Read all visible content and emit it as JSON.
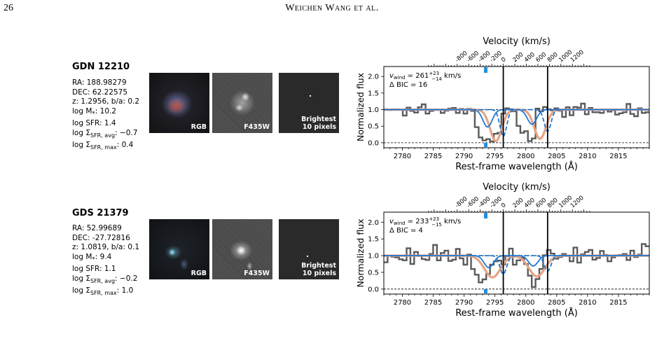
{
  "header": {
    "page_number": "26",
    "running_title": "Weichen Wang et al."
  },
  "panels": [
    {
      "name": "GDN 12210",
      "properties": {
        "ra": "RA: 188.98279",
        "dec": "DEC: 62.22575",
        "z_ba": "z: 1.2956, b/a: 0.2",
        "logm_prefix": "log M",
        "logm_value": ": 10.2",
        "logsfr": "log SFR: 1.4",
        "sigma_avg_prefix": "log Σ",
        "sigma_avg_sub": "SFR, avg",
        "sigma_avg_value": ": −0.7",
        "sigma_max_prefix": "log Σ",
        "sigma_max_sub": "SFR, max",
        "sigma_max_value": ": 0.4"
      },
      "images": {
        "rgb_label": "RGB",
        "f435w_label": "F435W",
        "bright_label_1": "Brightest",
        "bright_label_2": "10 pixels"
      },
      "spectrum": {
        "vwind_text": "= 261",
        "vwind_sup": "+23",
        "vwind_sub": "−14",
        "vwind_unit": "km/s",
        "dbic_text": "Δ BIC = 16"
      }
    },
    {
      "name": "GDS 21379",
      "properties": {
        "ra": "RA: 52.99689",
        "dec": "DEC: -27.72816",
        "z_ba": "z: 1.0819, b/a: 0.1",
        "logm_prefix": "log M",
        "logm_value": ": 9.4",
        "logsfr": "log SFR: 1.1",
        "sigma_avg_prefix": "log Σ",
        "sigma_avg_sub": "SFR, avg",
        "sigma_avg_value": ": −0.2",
        "sigma_max_prefix": "log Σ",
        "sigma_max_sub": "SFR, max",
        "sigma_max_value": ": 1.0"
      },
      "images": {
        "rgb_label": "RGB",
        "f435w_label": "F435W",
        "bright_label_1": "Brightest",
        "bright_label_2": "10 pixels"
      },
      "spectrum": {
        "vwind_text": "= 233",
        "vwind_sup": "+23",
        "vwind_sub": "−15",
        "vwind_unit": "km/s",
        "dbic_text": "Δ BIC = 4"
      }
    }
  ],
  "chart_data": [
    {
      "type": "line",
      "xlabel": "Rest-frame wavelength (Å)",
      "ylabel": "Normalized flux",
      "top_xlabel": "Velocity (km/s)",
      "xlim": [
        2777,
        2820
      ],
      "ylim": [
        -0.15,
        2.3
      ],
      "xticks": [
        2780,
        2785,
        2790,
        2795,
        2800,
        2805,
        2810,
        2815
      ],
      "yticks": [
        0.0,
        0.5,
        1.0,
        1.5,
        2.0
      ],
      "ytick_labels": [
        "0.0",
        "0.5",
        "1.0",
        "1.5",
        "2.0"
      ],
      "velocity_ticks": [
        "-800",
        "-600",
        "-400",
        "-200",
        "0",
        "200",
        "400",
        "600",
        "800",
        "1000",
        "1200"
      ],
      "velocity_zero_wavelength": 2796.35,
      "systemic_lines": [
        2796.35,
        2803.53
      ],
      "marker_wavelength": 2793.5,
      "flux_step_series": [
        1.01,
        0.99,
        1.01,
        1.01,
        1.0,
        0.82,
        1.06,
        0.96,
        0.91,
        1.07,
        1.16,
        0.88,
        0.96,
        0.99,
        0.99,
        0.9,
        0.97,
        1.03,
        1.05,
        0.9,
        1.02,
        0.88,
        1.02,
        0.96,
        0.47,
        0.16,
        0.07,
        0.11,
        0.04,
        0.27,
        0.3,
        0.88,
        1.04,
        1.01,
        0.95,
        0.51,
        0.3,
        0.35,
        0.05,
        0.13,
        1.03,
        0.95,
        1.08,
        1.01,
        0.98,
        1.04,
        0.97,
        0.78,
        1.07,
        0.83,
        1.08,
        1.06,
        1.18,
        0.86,
        1.05,
        0.92,
        0.92,
        0.9,
        1.0,
        0.94,
        0.98,
        0.85,
        0.89,
        0.92,
        1.17,
        0.87,
        0.8,
        1.04,
        0.9,
        0.92
      ],
      "model": {
        "total": {
          "color": "#e8a383",
          "components": [
            {
              "center": 2795.15,
              "depth": 0.95,
              "sigma": 0.95
            },
            {
              "center": 2802.3,
              "depth": 0.88,
              "sigma": 0.95
            }
          ]
        },
        "components": {
          "color": "#1f77d4",
          "center_wavelengths": [
            2793.8,
            2796.35,
            2801.0,
            2803.53
          ]
        }
      }
    },
    {
      "type": "line",
      "xlabel": "Rest-frame wavelength (Å)",
      "ylabel": "Normalized flux",
      "top_xlabel": "Velocity (km/s)",
      "xlim": [
        2777,
        2820
      ],
      "ylim": [
        -0.15,
        2.3
      ],
      "xticks": [
        2780,
        2785,
        2790,
        2795,
        2800,
        2805,
        2810,
        2815
      ],
      "yticks": [
        0.0,
        0.5,
        1.0,
        1.5,
        2.0
      ],
      "ytick_labels": [
        "0.0",
        "0.5",
        "1.0",
        "1.5",
        "2.0"
      ],
      "velocity_ticks": [
        "-800",
        "-600",
        "-400",
        "-200",
        "0",
        "200",
        "400",
        "600",
        "800",
        "1000",
        "1200"
      ],
      "velocity_zero_wavelength": 2796.35,
      "systemic_lines": [
        2796.35,
        2803.53
      ],
      "marker_wavelength": 2793.5,
      "flux_step_series": [
        0.8,
        1.0,
        0.97,
        0.95,
        0.89,
        0.86,
        1.22,
        0.75,
        1.11,
        0.99,
        0.9,
        0.87,
        1.05,
        1.32,
        0.86,
        1.08,
        1.15,
        0.84,
        0.88,
        1.2,
        0.92,
        0.73,
        1.03,
        0.6,
        0.43,
        0.2,
        0.29,
        0.45,
        0.73,
        0.83,
        0.85,
        0.74,
        0.99,
        1.21,
        0.73,
        0.86,
        0.94,
        0.75,
        0.4,
        0.06,
        0.3,
        0.6,
        1.01,
        1.17,
        1.06,
        0.91,
        0.96,
        1.05,
        0.99,
        0.83,
        1.24,
        0.79,
        1.04,
        1.11,
        1.17,
        0.88,
        0.93,
        1.14,
        1.02,
        0.83,
        0.95,
        1.01,
        1.02,
        1.05,
        0.87,
        1.15,
        0.96,
        1.03,
        1.35,
        1.28
      ],
      "model": {
        "total": {
          "color": "#e8a383",
          "components": [
            {
              "center": 2794.6,
              "depth": 0.65,
              "sigma": 1.3
            },
            {
              "center": 2801.8,
              "depth": 0.62,
              "sigma": 1.3
            }
          ]
        },
        "components": {
          "color": "#1f77d4",
          "center_wavelengths": [
            2794.0,
            2796.35,
            2801.2,
            2803.53
          ]
        }
      }
    }
  ]
}
